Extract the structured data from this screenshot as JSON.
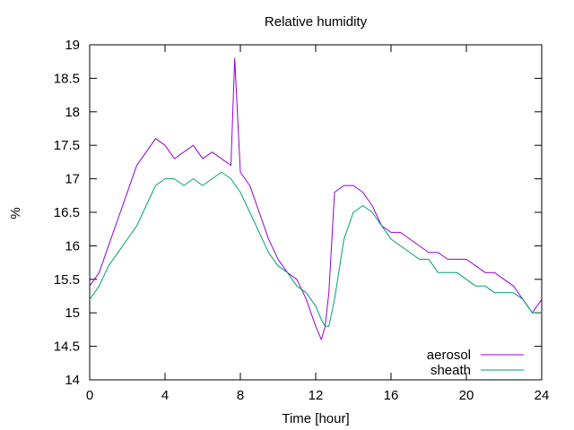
{
  "chart_data": {
    "type": "line",
    "title": "Relative humidity",
    "xlabel": "Time [hour]",
    "ylabel": "%",
    "xlim": [
      0,
      24
    ],
    "ylim": [
      14,
      19
    ],
    "xticks": [
      0,
      4,
      8,
      12,
      16,
      20,
      24
    ],
    "yticks": [
      14,
      14.5,
      15,
      15.5,
      16,
      16.5,
      17,
      17.5,
      18,
      18.5,
      19
    ],
    "grid": false,
    "legend_position": "bottom-right",
    "series": [
      {
        "name": "aerosol",
        "color": "#9400d3",
        "x": [
          0,
          0.5,
          1,
          1.5,
          2,
          2.5,
          3,
          3.5,
          4,
          4.5,
          5,
          5.5,
          6,
          6.5,
          7,
          7.5,
          7.7,
          8,
          8.5,
          9,
          9.5,
          10,
          10.5,
          11,
          11.5,
          12,
          12.3,
          12.5,
          12.7,
          13,
          13.5,
          14,
          14.5,
          15,
          15.5,
          16,
          16.5,
          17,
          17.5,
          18,
          18.5,
          19,
          19.5,
          20,
          20.5,
          21,
          21.5,
          22,
          22.5,
          23,
          23.5,
          24
        ],
        "values": [
          15.4,
          15.6,
          16.0,
          16.4,
          16.8,
          17.2,
          17.4,
          17.6,
          17.5,
          17.3,
          17.4,
          17.5,
          17.3,
          17.4,
          17.3,
          17.2,
          18.8,
          17.1,
          16.9,
          16.5,
          16.1,
          15.8,
          15.6,
          15.5,
          15.2,
          14.8,
          14.6,
          14.8,
          15.3,
          16.8,
          16.9,
          16.9,
          16.8,
          16.6,
          16.3,
          16.2,
          16.2,
          16.1,
          16.0,
          15.9,
          15.9,
          15.8,
          15.8,
          15.8,
          15.7,
          15.6,
          15.6,
          15.5,
          15.4,
          15.2,
          15.0,
          15.2
        ]
      },
      {
        "name": "sheath",
        "color": "#009e73",
        "x": [
          0,
          0.5,
          1,
          1.5,
          2,
          2.5,
          3,
          3.5,
          4,
          4.5,
          5,
          5.5,
          6,
          6.5,
          7,
          7.5,
          8,
          8.5,
          9,
          9.5,
          10,
          10.5,
          11,
          11.5,
          12,
          12.3,
          12.5,
          12.7,
          13,
          13.5,
          14,
          14.5,
          15,
          15.5,
          16,
          16.5,
          17,
          17.5,
          18,
          18.5,
          19,
          19.5,
          20,
          20.5,
          21,
          21.5,
          22,
          22.5,
          23,
          23.5,
          24
        ],
        "values": [
          15.2,
          15.4,
          15.7,
          15.9,
          16.1,
          16.3,
          16.6,
          16.9,
          17.0,
          17.0,
          16.9,
          17.0,
          16.9,
          17.0,
          17.1,
          17.0,
          16.8,
          16.5,
          16.2,
          15.9,
          15.7,
          15.6,
          15.4,
          15.3,
          15.1,
          14.9,
          14.8,
          14.8,
          15.2,
          16.1,
          16.5,
          16.6,
          16.5,
          16.3,
          16.1,
          16.0,
          15.9,
          15.8,
          15.8,
          15.6,
          15.6,
          15.6,
          15.5,
          15.4,
          15.4,
          15.3,
          15.3,
          15.3,
          15.2,
          15.0,
          15.0
        ]
      }
    ]
  }
}
